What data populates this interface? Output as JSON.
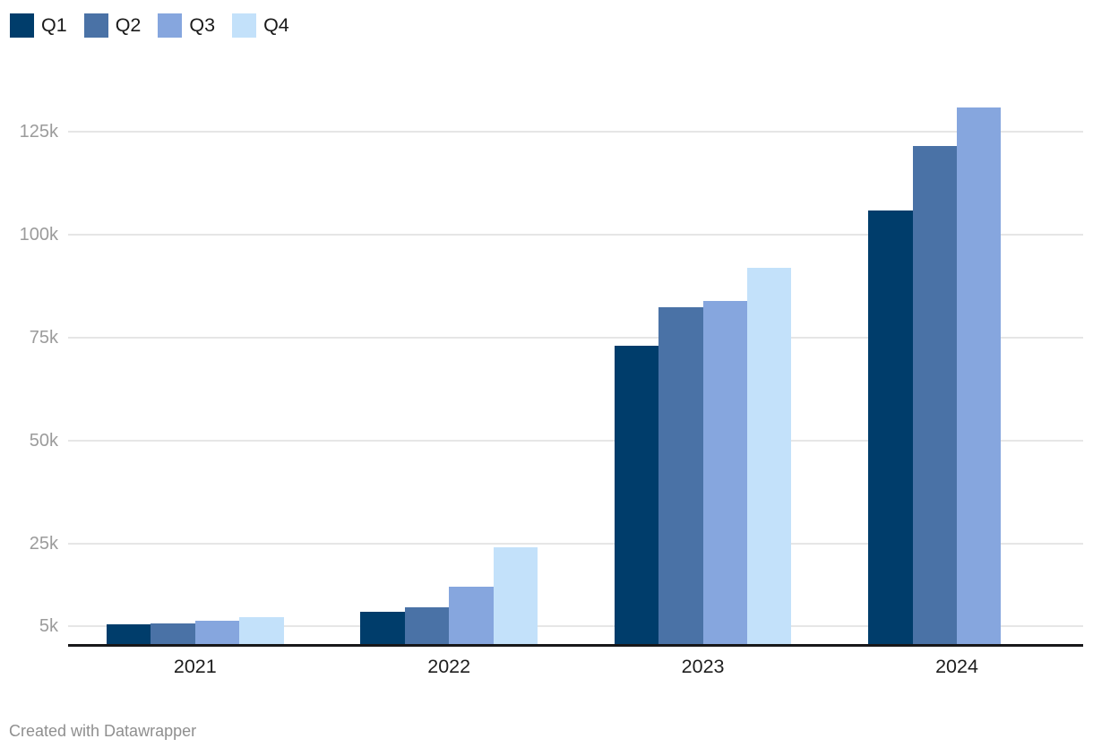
{
  "footer": {
    "text": "Created with Datawrapper"
  },
  "legend": {
    "items": [
      {
        "label": "Q1",
        "color": "#003d6b"
      },
      {
        "label": "Q2",
        "color": "#4a72a6"
      },
      {
        "label": "Q3",
        "color": "#86a6de"
      },
      {
        "label": "Q4",
        "color": "#c3e1fa"
      }
    ]
  },
  "chart_data": {
    "type": "bar",
    "title": "",
    "xlabel": "",
    "ylabel": "",
    "categories": [
      "2021",
      "2022",
      "2023",
      "2024"
    ],
    "series": [
      {
        "name": "Q1",
        "color": "#003d6b",
        "values": [
          5400,
          8500,
          73000,
          106000
        ]
      },
      {
        "name": "Q2",
        "color": "#4a72a6",
        "values": [
          5600,
          9600,
          82500,
          121500
        ]
      },
      {
        "name": "Q3",
        "color": "#86a6de",
        "values": [
          6200,
          14600,
          84000,
          131000
        ]
      },
      {
        "name": "Q4",
        "color": "#c3e1fa",
        "values": [
          7200,
          24200,
          92000,
          null
        ]
      }
    ],
    "yticks": [
      {
        "value": 5000,
        "label": "5k"
      },
      {
        "value": 25000,
        "label": "25k"
      },
      {
        "value": 50000,
        "label": "50k"
      },
      {
        "value": 75000,
        "label": "75k"
      },
      {
        "value": 100000,
        "label": "100k"
      },
      {
        "value": 125000,
        "label": "125k"
      }
    ],
    "ylim": [
      0,
      137000
    ],
    "grid": true,
    "legend_position": "top-left",
    "axis_color": "#18181a",
    "gridline_color": "#e6e6e6",
    "tick_label_color": "#9b9b9b",
    "category_label_color": "#1d1d1d"
  }
}
